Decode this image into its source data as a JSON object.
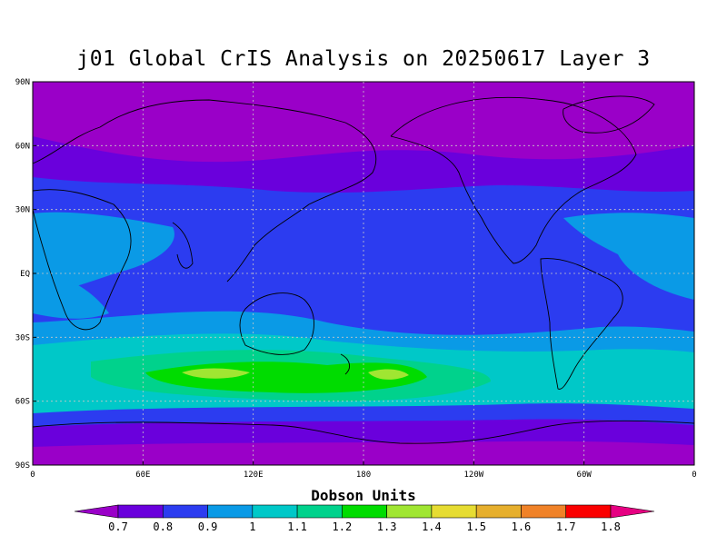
{
  "title": "j01 Global CrIS Analysis on 20250617 Layer 3",
  "colorbar": {
    "title": "Dobson Units",
    "levels": [
      "0.7",
      "0.8",
      "0.9",
      "1",
      "1.1",
      "1.2",
      "1.3",
      "1.4",
      "1.5",
      "1.6",
      "1.7",
      "1.8"
    ],
    "colors": [
      "#9a00c8",
      "#6a00dc",
      "#2c3cf0",
      "#0a9ae6",
      "#00c8c8",
      "#00d28c",
      "#00dc00",
      "#a0e632",
      "#e6dc32",
      "#e6af2d",
      "#f08228",
      "#fa0000",
      "#e60082"
    ]
  },
  "axes": {
    "lat_labels": [
      "90N",
      "60N",
      "30N",
      "EQ",
      "30S",
      "60S",
      "90S"
    ],
    "lon_labels": [
      "0",
      "60E",
      "120E",
      "180",
      "120W",
      "60W",
      "0"
    ]
  },
  "field_colors": {
    "c07": "#9a00c8",
    "c08": "#6a00dc",
    "c09": "#2c3cf0",
    "c10": "#0a9ae6",
    "c11": "#00c8c8",
    "c12": "#00d28c",
    "c13": "#00dc00",
    "c14": "#a0e632"
  }
}
